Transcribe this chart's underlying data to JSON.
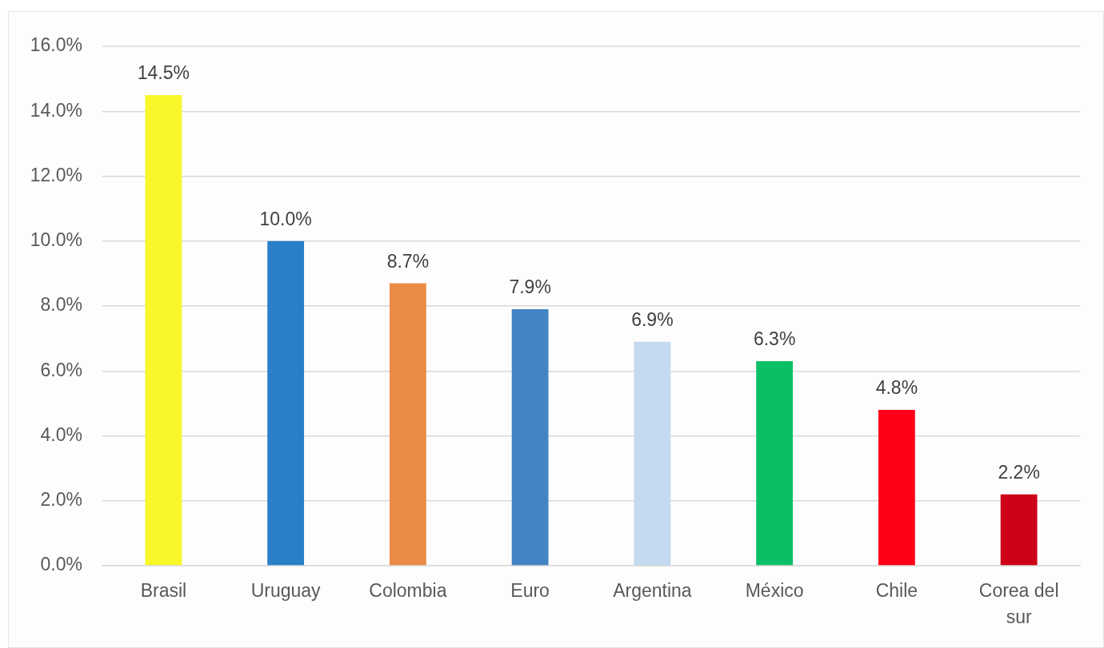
{
  "chart_data": {
    "type": "bar",
    "categories": [
      "Brasil",
      "Uruguay",
      "Colombia",
      "Euro",
      "Argentina",
      "México",
      "Chile",
      "Corea del sur"
    ],
    "values": [
      14.5,
      10.0,
      8.7,
      7.9,
      6.9,
      6.3,
      4.8,
      2.2
    ],
    "colors": [
      "#f7f72a",
      "#2a7fc8",
      "#ea8c45",
      "#4384c4",
      "#c5daf0",
      "#0bbf66",
      "#ff0019",
      "#cc0016"
    ],
    "value_labels": [
      "14.5%",
      "10.0%",
      "8.7%",
      "7.9%",
      "6.9%",
      "6.3%",
      "4.8%",
      "2.2%"
    ],
    "ylim": [
      0,
      16
    ],
    "yticks": [
      {
        "value": 0,
        "label": "0.0%"
      },
      {
        "value": 2,
        "label": "2.0%"
      },
      {
        "value": 4,
        "label": "4.0%"
      },
      {
        "value": 6,
        "label": "6.0%"
      },
      {
        "value": 8,
        "label": "8.0%"
      },
      {
        "value": 10,
        "label": "10.0%"
      },
      {
        "value": 12,
        "label": "12.0%"
      },
      {
        "value": 14,
        "label": "14.0%"
      },
      {
        "value": 16,
        "label": "16.0%"
      }
    ],
    "grid": "y"
  }
}
